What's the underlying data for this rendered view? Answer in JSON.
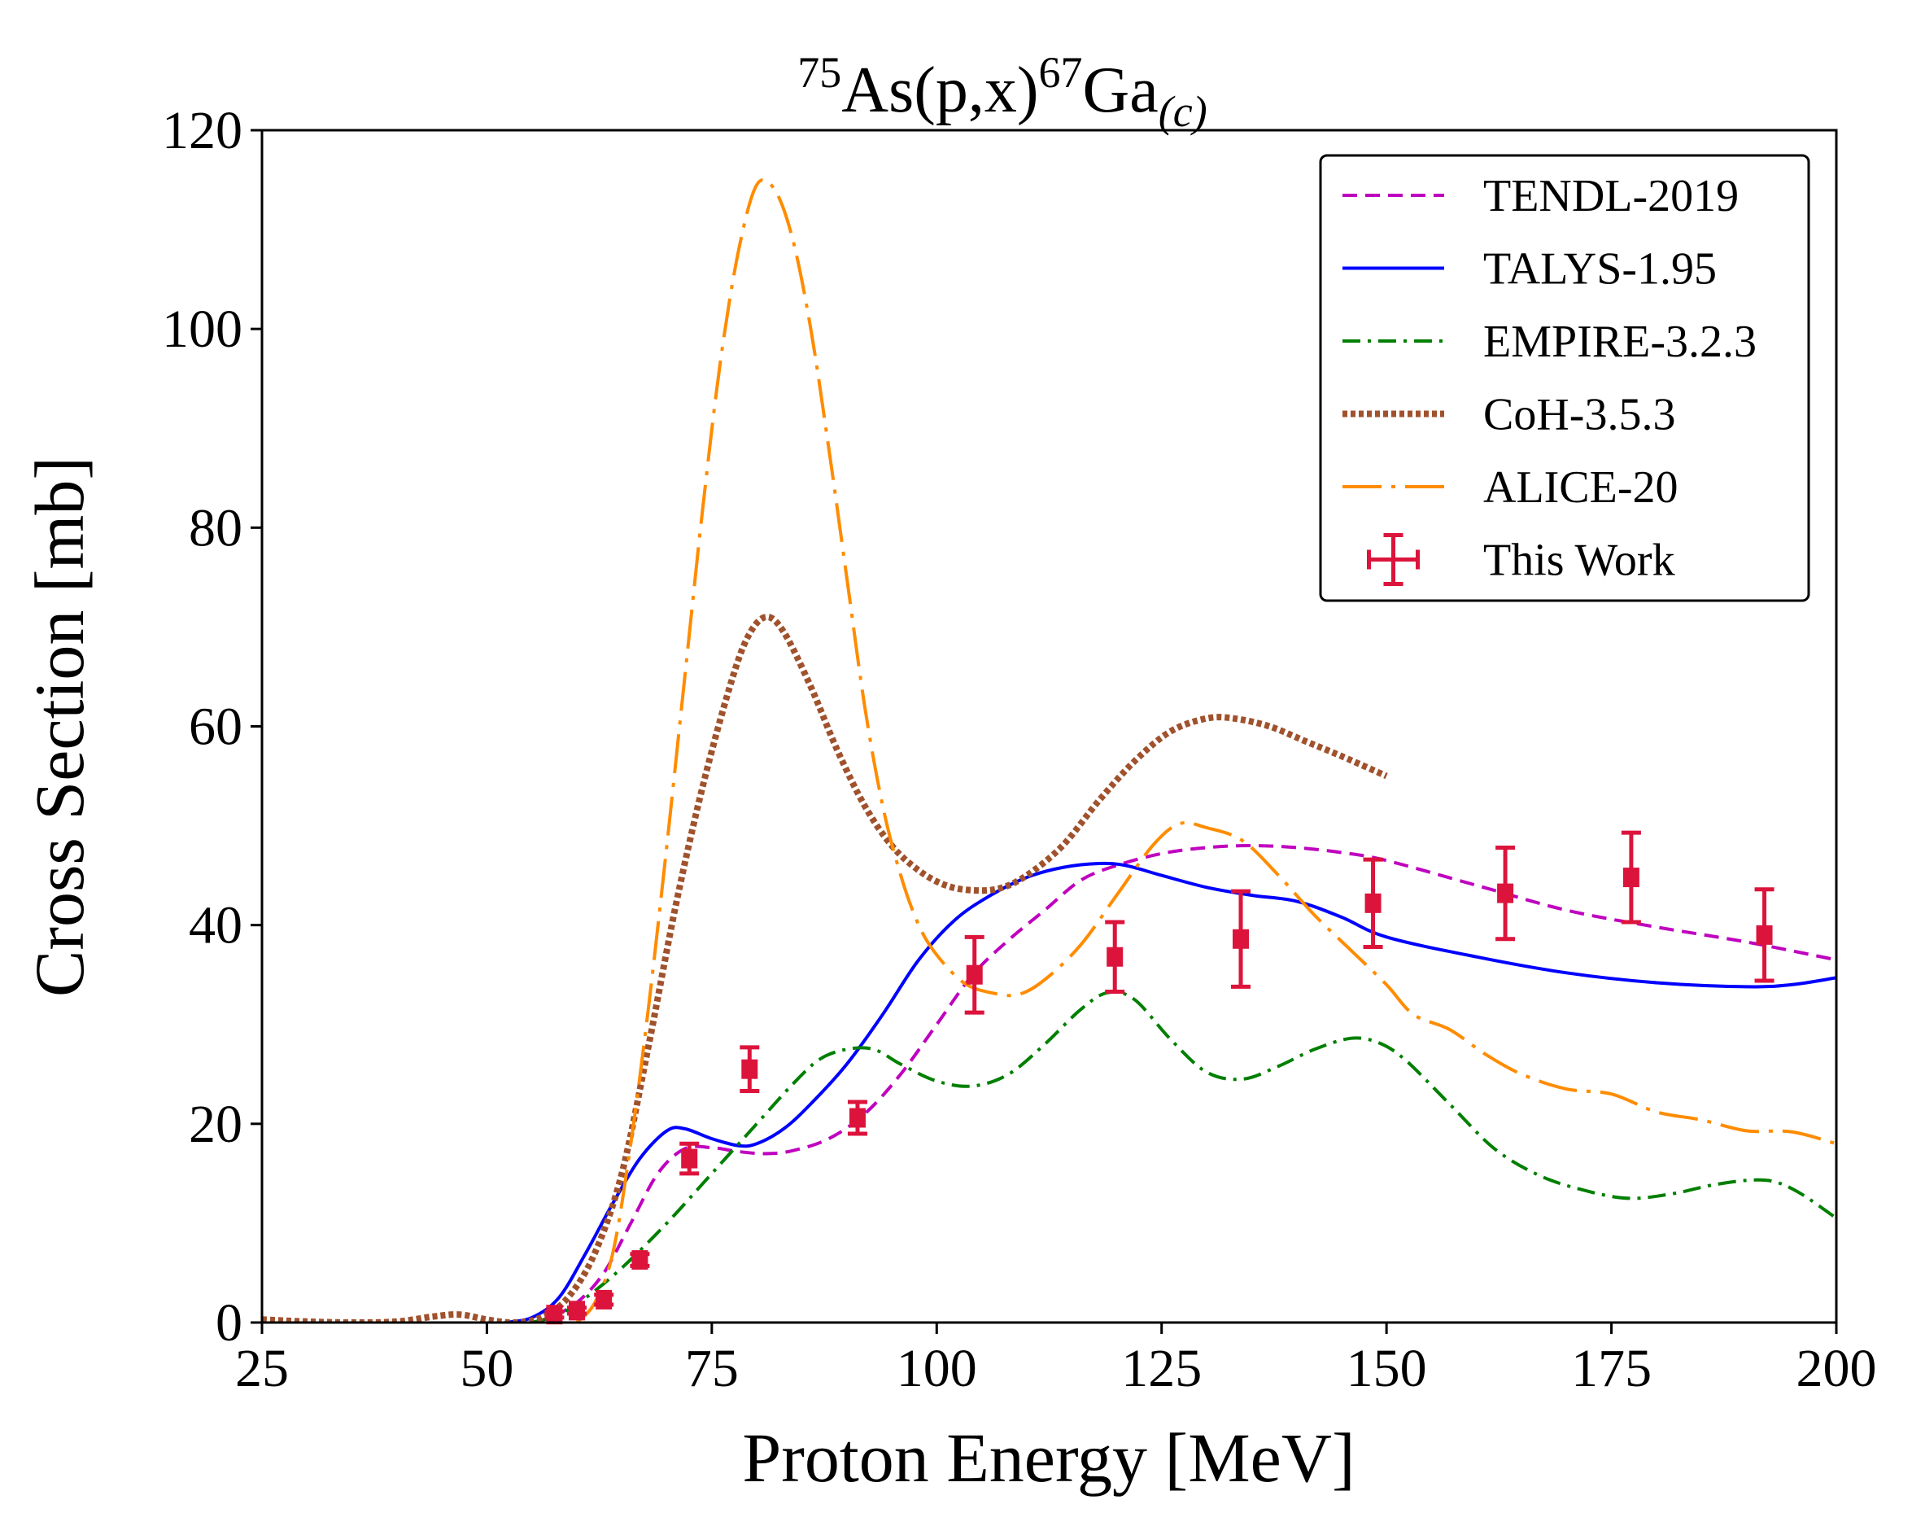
{
  "chart_data": {
    "type": "line",
    "title": {
      "pre_sup": "75",
      "main": "As(p,x)",
      "mid_sup": "67",
      "main2": "Ga",
      "sub": "(c)"
    },
    "xlabel": "Proton Energy [MeV]",
    "ylabel": "Cross Section [mb]",
    "xlim": [
      25,
      200
    ],
    "ylim": [
      0,
      120
    ],
    "xticks": [
      25,
      50,
      75,
      100,
      125,
      150,
      175,
      200
    ],
    "yticks": [
      0,
      20,
      40,
      60,
      80,
      100,
      120
    ],
    "grid": false,
    "legend_position": "top-right",
    "series": [
      {
        "name": "TENDL-2019",
        "color": "#bf00bf",
        "style": "dashed",
        "points": [
          [
            55,
            0
          ],
          [
            57,
            0.5
          ],
          [
            60,
            2
          ],
          [
            63,
            5
          ],
          [
            66,
            10
          ],
          [
            69,
            15
          ],
          [
            72,
            17.5
          ],
          [
            75,
            17.6
          ],
          [
            78,
            17.2
          ],
          [
            81,
            17
          ],
          [
            84,
            17.3
          ],
          [
            88,
            18.5
          ],
          [
            92,
            21
          ],
          [
            96,
            25
          ],
          [
            100,
            30
          ],
          [
            104,
            35
          ],
          [
            108,
            38.5
          ],
          [
            112,
            41.5
          ],
          [
            116,
            44.5
          ],
          [
            120,
            46
          ],
          [
            125,
            47.2
          ],
          [
            130,
            47.8
          ],
          [
            135,
            48
          ],
          [
            140,
            47.8
          ],
          [
            145,
            47.3
          ],
          [
            150,
            46.5
          ],
          [
            160,
            44
          ],
          [
            170,
            41.5
          ],
          [
            180,
            39.8
          ],
          [
            190,
            38.3
          ],
          [
            200,
            36.5
          ]
        ]
      },
      {
        "name": "TALYS-1.95",
        "color": "#0000ff",
        "style": "solid",
        "points": [
          [
            52,
            0
          ],
          [
            55,
            0.5
          ],
          [
            58,
            2.5
          ],
          [
            61,
            7
          ],
          [
            64,
            12
          ],
          [
            67,
            16.5
          ],
          [
            70,
            19.3
          ],
          [
            72,
            19.5
          ],
          [
            75,
            18.5
          ],
          [
            78,
            17.8
          ],
          [
            80,
            18
          ],
          [
            83,
            19.5
          ],
          [
            86,
            22
          ],
          [
            90,
            26
          ],
          [
            94,
            31
          ],
          [
            98,
            36.5
          ],
          [
            102,
            40.5
          ],
          [
            106,
            43
          ],
          [
            110,
            44.8
          ],
          [
            114,
            45.8
          ],
          [
            118,
            46.2
          ],
          [
            121,
            46
          ],
          [
            125,
            45
          ],
          [
            130,
            43.8
          ],
          [
            135,
            43
          ],
          [
            140,
            42.4
          ],
          [
            145,
            40.8
          ],
          [
            150,
            38.8
          ],
          [
            160,
            36.8
          ],
          [
            170,
            35.2
          ],
          [
            180,
            34.2
          ],
          [
            190,
            33.8
          ],
          [
            195,
            34
          ],
          [
            200,
            34.7
          ]
        ]
      },
      {
        "name": "EMPIRE-3.2.3",
        "color": "#007f00",
        "style": "dashdot",
        "points": [
          [
            55,
            0
          ],
          [
            58,
            0.8
          ],
          [
            61,
            2.5
          ],
          [
            65,
            5.5
          ],
          [
            70,
            10
          ],
          [
            75,
            15
          ],
          [
            80,
            20
          ],
          [
            84,
            24
          ],
          [
            87,
            26.5
          ],
          [
            90,
            27.5
          ],
          [
            93,
            27.5
          ],
          [
            96,
            26
          ],
          [
            100,
            24.3
          ],
          [
            104,
            23.8
          ],
          [
            108,
            25
          ],
          [
            112,
            28
          ],
          [
            116,
            31.5
          ],
          [
            119,
            33.2
          ],
          [
            122,
            32.5
          ],
          [
            126,
            28.5
          ],
          [
            130,
            25.2
          ],
          [
            134,
            24.5
          ],
          [
            138,
            25.8
          ],
          [
            142,
            27.5
          ],
          [
            146,
            28.6
          ],
          [
            149,
            28.2
          ],
          [
            152,
            26.5
          ],
          [
            157,
            22
          ],
          [
            162,
            17.5
          ],
          [
            167,
            14.8
          ],
          [
            172,
            13.3
          ],
          [
            177,
            12.5
          ],
          [
            182,
            13
          ],
          [
            186,
            13.8
          ],
          [
            190,
            14.3
          ],
          [
            193,
            14.2
          ],
          [
            196,
            13
          ],
          [
            200,
            10.5
          ]
        ]
      },
      {
        "name": "CoH-3.5.3",
        "color": "#a0522d",
        "style": "dotted",
        "points": [
          [
            25,
            0.3
          ],
          [
            30,
            0.1
          ],
          [
            35,
            0
          ],
          [
            40,
            0.1
          ],
          [
            44,
            0.6
          ],
          [
            47,
            0.8
          ],
          [
            50,
            0.3
          ],
          [
            53,
            0
          ],
          [
            56,
            0.5
          ],
          [
            59,
            2.5
          ],
          [
            62,
            7
          ],
          [
            65,
            15
          ],
          [
            68,
            28
          ],
          [
            71,
            42
          ],
          [
            74,
            54
          ],
          [
            77,
            64
          ],
          [
            79,
            69
          ],
          [
            81,
            71
          ],
          [
            83,
            69.5
          ],
          [
            86,
            64
          ],
          [
            89,
            57.5
          ],
          [
            92,
            52
          ],
          [
            95,
            48
          ],
          [
            98,
            45.5
          ],
          [
            101,
            44
          ],
          [
            104,
            43.5
          ],
          [
            107,
            43.7
          ],
          [
            110,
            45
          ],
          [
            114,
            48
          ],
          [
            118,
            52.5
          ],
          [
            122,
            56.5
          ],
          [
            126,
            59.5
          ],
          [
            130,
            60.8
          ],
          [
            133,
            60.8
          ],
          [
            137,
            60
          ],
          [
            141,
            58.5
          ],
          [
            145,
            57
          ],
          [
            150,
            55
          ]
        ]
      },
      {
        "name": "ALICE-20",
        "color": "#ff8c00",
        "style": "longdashdot",
        "points": [
          [
            60,
            0
          ],
          [
            62,
            2
          ],
          [
            64,
            7
          ],
          [
            66,
            18
          ],
          [
            68,
            32
          ],
          [
            70,
            48
          ],
          [
            72,
            65
          ],
          [
            74,
            82
          ],
          [
            76,
            97
          ],
          [
            78,
            108
          ],
          [
            80,
            114.5
          ],
          [
            82,
            114
          ],
          [
            84,
            109
          ],
          [
            86,
            100
          ],
          [
            88,
            88
          ],
          [
            90,
            75
          ],
          [
            92,
            62
          ],
          [
            94,
            52
          ],
          [
            96,
            45
          ],
          [
            98,
            40
          ],
          [
            100,
            37
          ],
          [
            103,
            34.2
          ],
          [
            106,
            33.2
          ],
          [
            109,
            33
          ],
          [
            112,
            34.5
          ],
          [
            116,
            38
          ],
          [
            120,
            43
          ],
          [
            124,
            48
          ],
          [
            127,
            50.2
          ],
          [
            130,
            49.8
          ],
          [
            134,
            48.5
          ],
          [
            138,
            45
          ],
          [
            142,
            41
          ],
          [
            146,
            37.5
          ],
          [
            150,
            34
          ],
          [
            153,
            31
          ],
          [
            157,
            29.5
          ],
          [
            161,
            27
          ],
          [
            165,
            25
          ],
          [
            170,
            23.5
          ],
          [
            175,
            23
          ],
          [
            180,
            21.2
          ],
          [
            185,
            20.4
          ],
          [
            190,
            19.3
          ],
          [
            195,
            19.2
          ],
          [
            200,
            18
          ]
        ]
      }
    ],
    "experimental": {
      "name": "This Work",
      "color": "#dc143c",
      "points": [
        {
          "x": 57.5,
          "y": 0.8,
          "yerr": 0.3
        },
        {
          "x": 60,
          "y": 1.2,
          "yerr": 0.3
        },
        {
          "x": 63,
          "y": 2.3,
          "yerr": 0.5
        },
        {
          "x": 67,
          "y": 6.3,
          "yerr": 0.6
        },
        {
          "x": 72.5,
          "y": 16.5,
          "yerr": 1.5
        },
        {
          "x": 79.2,
          "y": 25.5,
          "yerr": 2.2
        },
        {
          "x": 91.2,
          "y": 20.6,
          "yerr": 1.6
        },
        {
          "x": 104.2,
          "y": 35,
          "yerr": 3.8
        },
        {
          "x": 119.8,
          "y": 36.8,
          "yerr": 3.5
        },
        {
          "x": 133.8,
          "y": 38.6,
          "yerr": 4.8
        },
        {
          "x": 148.5,
          "y": 42.2,
          "yerr": 4.4
        },
        {
          "x": 163.2,
          "y": 43.2,
          "yerr": 4.6
        },
        {
          "x": 177.2,
          "y": 44.8,
          "yerr": 4.5
        },
        {
          "x": 192,
          "y": 39,
          "yerr": 4.6
        }
      ]
    }
  }
}
